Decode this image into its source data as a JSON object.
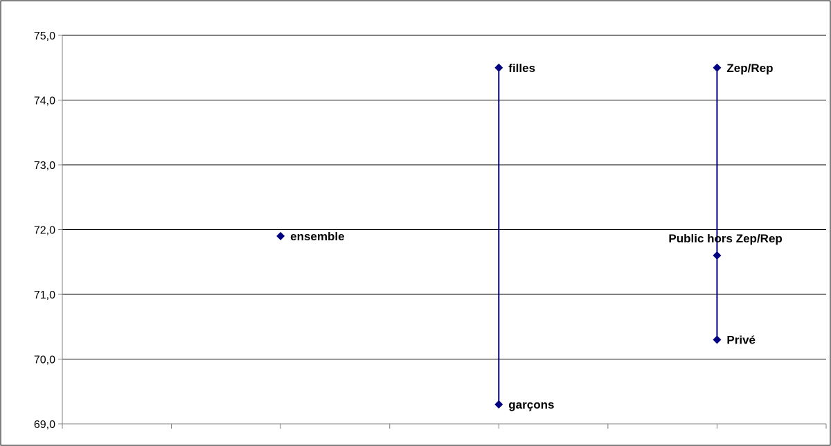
{
  "chart_data": {
    "type": "scatter",
    "title": "",
    "xlabel": "",
    "ylabel": "",
    "ylim": [
      69.0,
      75.0
    ],
    "y_ticks": [
      "69,0",
      "70,0",
      "71,0",
      "72,0",
      "73,0",
      "74,0",
      "75,0"
    ],
    "y_tick_values": [
      69.0,
      70.0,
      71.0,
      72.0,
      73.0,
      74.0,
      75.0
    ],
    "x_categories_count": 7,
    "grid": "horizontal",
    "legend": "none",
    "marker": "diamond",
    "colors": {
      "marker": "#000080",
      "range_line": "#000080",
      "grid": "#000000",
      "axis": "#808080"
    },
    "points": [
      {
        "label": "ensemble",
        "x": 3,
        "y": 71.9
      },
      {
        "label": "filles",
        "x": 5,
        "y": 74.5
      },
      {
        "label": "garçons",
        "x": 5,
        "y": 69.3
      },
      {
        "label": "Zep/Rep",
        "x": 7,
        "y": 74.5
      },
      {
        "label": "Public hors Zep/Rep",
        "x": 7,
        "y": 71.6
      },
      {
        "label": "Privé",
        "x": 7,
        "y": 70.3
      }
    ],
    "range_lines": [
      {
        "x": 5,
        "y_from": 69.3,
        "y_to": 74.5
      },
      {
        "x": 7,
        "y_from": 70.3,
        "y_to": 74.5
      }
    ]
  }
}
